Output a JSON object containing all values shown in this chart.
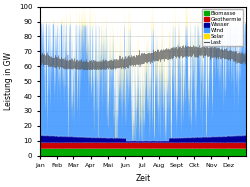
{
  "title": "",
  "xlabel": "Zeit",
  "ylabel": "Leistung in GW",
  "xlim": [
    0,
    8760
  ],
  "ylim": [
    0,
    100
  ],
  "yticks": [
    0,
    10,
    20,
    30,
    40,
    50,
    60,
    70,
    80,
    90,
    100
  ],
  "months": [
    "Jan",
    "Feb",
    "Mar",
    "Apr",
    "Mai",
    "Jun",
    "Jul",
    "Aug",
    "Sept",
    "Okt",
    "Nov",
    "Dez"
  ],
  "month_hours": [
    0,
    744,
    1416,
    2160,
    2880,
    3624,
    4344,
    5088,
    5832,
    6552,
    7296,
    8016
  ],
  "colors": {
    "Biomasse": "#00aa00",
    "Geothermie": "#cc0000",
    "Wasser": "#000099",
    "Wind": "#4499ff",
    "Solar": "#ffdd00",
    "Last": "#555555"
  },
  "n_points": 8760,
  "figsize": [
    2.5,
    1.87
  ],
  "dpi": 100
}
